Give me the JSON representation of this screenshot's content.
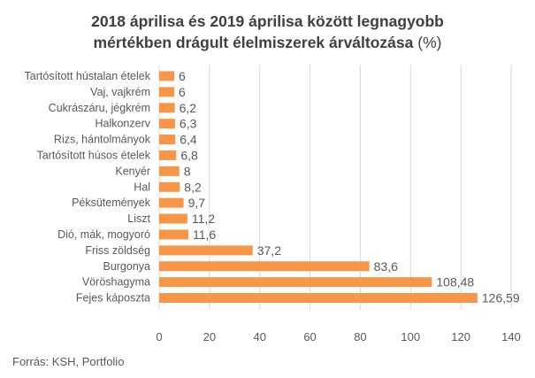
{
  "chart_data": {
    "type": "bar",
    "orientation": "horizontal",
    "title_line1": "2018 áprilisa és 2019 áprilisa között legnagyobb",
    "title_line2": "mértékben drágult élelmiszerek árváltozása",
    "title_unit": "(%)",
    "categories": [
      "Tartósított hústalan ételek",
      "Vaj, vajkrém",
      "Cukrászáru, jégkrém",
      "Halkonzerv",
      "Rizs, hántolmányok",
      "Tartósított húsos ételek",
      "Kenyér",
      "Hal",
      "Péksütemények",
      "Liszt",
      "Dió, mák, mogyoró",
      "Friss zöldség",
      "Burgonya",
      "Vöröshagyma",
      "Fejes káposzta"
    ],
    "values": [
      6,
      6,
      6.2,
      6.3,
      6.4,
      6.8,
      8,
      8.2,
      9.7,
      11.2,
      11.6,
      37.2,
      83.6,
      108.48,
      126.59
    ],
    "value_labels": [
      "6",
      "6",
      "6,2",
      "6,3",
      "6,4",
      "6,8",
      "8",
      "8,2",
      "9,7",
      "11,2",
      "11,6",
      "37,2",
      "83,6",
      "108,48",
      "126,59"
    ],
    "xlim": [
      0,
      140
    ],
    "xticks": [
      0,
      20,
      40,
      60,
      80,
      100,
      120,
      140
    ],
    "grid": "vertical",
    "bar_color": "#F79646",
    "source": "Forrás: KSH, Portfolio"
  }
}
